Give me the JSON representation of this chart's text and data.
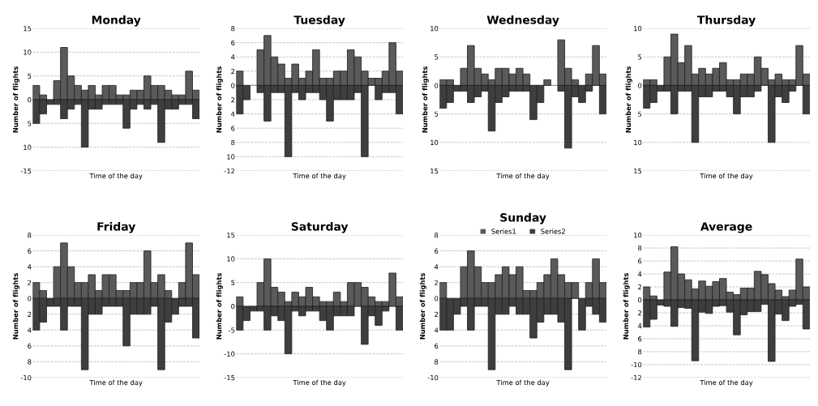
{
  "chart_data": [
    {
      "type": "bar",
      "stacked": true,
      "title": "Monday",
      "xlabel": "Time of the day",
      "ylabel": "Number of flights",
      "categories": [
        null,
        null,
        null,
        null,
        null,
        null,
        null,
        null,
        null,
        null,
        null,
        null,
        null,
        null,
        null,
        null,
        null,
        null,
        null,
        null,
        null,
        null,
        null,
        null
      ],
      "grid": "y",
      "ylim": [
        -15,
        15
      ],
      "yticks": [
        {
          "value": -15,
          "label": "-15"
        },
        {
          "value": -10,
          "label": "10"
        },
        {
          "value": -5,
          "label": "5"
        },
        0,
        5,
        10,
        15
      ],
      "series": [
        {
          "color": "#5a5a5a",
          "values": [
            3,
            1,
            0,
            4,
            11,
            5,
            3,
            2,
            3,
            1,
            3,
            3,
            1,
            1,
            2,
            2,
            5,
            3,
            3,
            2,
            1,
            1,
            6,
            2
          ]
        },
        {
          "color": "#3e3e3e",
          "values": [
            -5,
            -3,
            -1,
            -1,
            -4,
            -2,
            -1,
            -10,
            -2,
            -2,
            -1,
            -1,
            -1,
            -6,
            -2,
            -1,
            -2,
            -1,
            -9,
            -2,
            -2,
            -1,
            -1,
            -4
          ]
        }
      ]
    },
    {
      "type": "bar",
      "stacked": true,
      "title": "Tuesday",
      "xlabel": "Time of the day",
      "ylabel": "Number of flights",
      "categories": [
        null,
        null,
        null,
        null,
        null,
        null,
        null,
        null,
        null,
        null,
        null,
        null,
        null,
        null,
        null,
        null,
        null,
        null,
        null,
        null,
        null,
        null,
        null,
        null
      ],
      "grid": "y",
      "ylim": [
        -12,
        8
      ],
      "yticks": [
        {
          "value": -12,
          "label": "-12"
        },
        {
          "value": -10,
          "label": "10"
        },
        {
          "value": -8,
          "label": "8"
        },
        {
          "value": -6,
          "label": "6"
        },
        {
          "value": -4,
          "label": "4"
        },
        {
          "value": -2,
          "label": "2"
        },
        0,
        2,
        4,
        6,
        8
      ],
      "series": [
        {
          "color": "#5a5a5a",
          "values": [
            2,
            0,
            0,
            5,
            7,
            4,
            3,
            1,
            3,
            1,
            2,
            5,
            1,
            1,
            2,
            2,
            5,
            4,
            2,
            1,
            1,
            2,
            6,
            2
          ]
        },
        {
          "color": "#3e3e3e",
          "values": [
            -4,
            -2,
            0,
            -1,
            -5,
            -1,
            -1,
            -10,
            -1,
            -2,
            -1,
            -1,
            -2,
            -5,
            -2,
            -2,
            -2,
            -1,
            -10,
            0,
            -2,
            -1,
            -1,
            -4
          ]
        }
      ]
    },
    {
      "type": "bar",
      "stacked": true,
      "title": "Wednesday",
      "xlabel": "Time of the day",
      "ylabel": "Number of flights",
      "categories": [
        null,
        null,
        null,
        null,
        null,
        null,
        null,
        null,
        null,
        null,
        null,
        null,
        null,
        null,
        null,
        null,
        null,
        null,
        null,
        null,
        null,
        null,
        null,
        null
      ],
      "grid": "y",
      "ylim": [
        -15,
        10
      ],
      "yticks": [
        {
          "value": -15,
          "label": "15"
        },
        {
          "value": -10,
          "label": "10"
        },
        {
          "value": -5,
          "label": "5"
        },
        0,
        5,
        10
      ],
      "series": [
        {
          "color": "#5a5a5a",
          "values": [
            1,
            1,
            0,
            3,
            7,
            3,
            2,
            1,
            3,
            3,
            2,
            3,
            2,
            0,
            0,
            1,
            0,
            8,
            3,
            1,
            0,
            2,
            7,
            2
          ]
        },
        {
          "color": "#3e3e3e",
          "values": [
            -4,
            -3,
            -1,
            -1,
            -3,
            -2,
            -1,
            -8,
            -3,
            -2,
            -1,
            -1,
            -1,
            -6,
            -3,
            0,
            0,
            -1,
            -11,
            -2,
            -3,
            -1,
            0,
            -5
          ]
        }
      ]
    },
    {
      "type": "bar",
      "stacked": true,
      "title": "Thursday",
      "xlabel": "Time of the day",
      "ylabel": "Number of flights",
      "categories": [
        null,
        null,
        null,
        null,
        null,
        null,
        null,
        null,
        null,
        null,
        null,
        null,
        null,
        null,
        null,
        null,
        null,
        null,
        null,
        null,
        null,
        null,
        null,
        null
      ],
      "grid": "y",
      "ylim": [
        -15,
        10
      ],
      "yticks": [
        {
          "value": -15,
          "label": "15"
        },
        {
          "value": -10,
          "label": "10"
        },
        {
          "value": -5,
          "label": "5"
        },
        0,
        5,
        10
      ],
      "series": [
        {
          "color": "#5a5a5a",
          "values": [
            1,
            1,
            0,
            5,
            9,
            4,
            7,
            2,
            3,
            2,
            3,
            4,
            1,
            1,
            2,
            2,
            5,
            3,
            1,
            2,
            1,
            1,
            7,
            2
          ]
        },
        {
          "color": "#3e3e3e",
          "values": [
            -4,
            -3,
            -1,
            -1,
            -5,
            -1,
            -1,
            -10,
            -2,
            -2,
            -1,
            -1,
            -2,
            -5,
            -2,
            -2,
            -1,
            0,
            -10,
            -2,
            -3,
            -1,
            0,
            -5
          ]
        }
      ]
    },
    {
      "type": "bar",
      "stacked": true,
      "title": "Friday",
      "xlabel": "Time of the day",
      "ylabel": "Number of flights",
      "categories": [
        null,
        null,
        null,
        null,
        null,
        null,
        null,
        null,
        null,
        null,
        null,
        null,
        null,
        null,
        null,
        null,
        null,
        null,
        null,
        null,
        null,
        null,
        null,
        null
      ],
      "grid": "y",
      "ylim": [
        -10,
        8
      ],
      "yticks": [
        {
          "value": -10,
          "label": "-10"
        },
        {
          "value": -8,
          "label": "8"
        },
        {
          "value": -6,
          "label": "6"
        },
        {
          "value": -4,
          "label": "4"
        },
        {
          "value": -2,
          "label": "2"
        },
        0,
        2,
        4,
        6,
        8
      ],
      "series": [
        {
          "color": "#5a5a5a",
          "values": [
            2,
            1,
            0,
            4,
            7,
            4,
            2,
            2,
            3,
            1,
            3,
            3,
            1,
            1,
            2,
            2,
            6,
            2,
            3,
            1,
            0,
            2,
            7,
            3
          ]
        },
        {
          "color": "#3e3e3e",
          "values": [
            -4,
            -3,
            -1,
            -1,
            -4,
            -1,
            -1,
            -9,
            -2,
            -2,
            -1,
            -1,
            -1,
            -6,
            -2,
            -2,
            -2,
            -1,
            -9,
            -3,
            -2,
            -1,
            -1,
            -5
          ]
        }
      ]
    },
    {
      "type": "bar",
      "stacked": true,
      "title": "Saturday",
      "xlabel": "Time of the day",
      "ylabel": "Number of flights",
      "categories": [
        null,
        null,
        null,
        null,
        null,
        null,
        null,
        null,
        null,
        null,
        null,
        null,
        null,
        null,
        null,
        null,
        null,
        null,
        null,
        null,
        null,
        null,
        null,
        null
      ],
      "grid": "y",
      "ylim": [
        -15,
        15
      ],
      "yticks": [
        {
          "value": -15,
          "label": "-15"
        },
        {
          "value": -10,
          "label": "-10"
        },
        {
          "value": -5,
          "label": "-5"
        },
        0,
        5,
        10,
        15
      ],
      "series": [
        {
          "color": "#5a5a5a",
          "values": [
            2,
            0,
            0,
            5,
            10,
            4,
            3,
            1,
            3,
            2,
            4,
            2,
            1,
            1,
            3,
            1,
            5,
            5,
            4,
            2,
            1,
            1,
            7,
            2
          ]
        },
        {
          "color": "#3e3e3e",
          "values": [
            -5,
            -3,
            -1,
            -1,
            -5,
            -2,
            -3,
            -10,
            -1,
            -2,
            -1,
            -1,
            -3,
            -5,
            -2,
            -2,
            -2,
            0,
            -8,
            -2,
            -4,
            -1,
            0,
            -5
          ]
        }
      ]
    },
    {
      "type": "bar",
      "stacked": true,
      "title": "Sunday",
      "xlabel": "Time of the day",
      "ylabel": "Number of flights",
      "categories": [
        null,
        null,
        null,
        null,
        null,
        null,
        null,
        null,
        null,
        null,
        null,
        null,
        null,
        null,
        null,
        null,
        null,
        null,
        null,
        null,
        null,
        null,
        null,
        null
      ],
      "grid": "y",
      "legend": "top",
      "ylim": [
        -10,
        8
      ],
      "yticks": [
        {
          "value": -10,
          "label": "-10"
        },
        {
          "value": -8,
          "label": "8"
        },
        {
          "value": -6,
          "label": "6"
        },
        {
          "value": -4,
          "label": "4"
        },
        {
          "value": -2,
          "label": "2"
        },
        0,
        2,
        4,
        6,
        8
      ],
      "series": [
        {
          "name": "Series1",
          "color": "#5a5a5a",
          "values": [
            2,
            0,
            0,
            4,
            6,
            4,
            2,
            2,
            3,
            4,
            3,
            4,
            1,
            1,
            2,
            3,
            5,
            3,
            2,
            2,
            0,
            2,
            5,
            2
          ]
        },
        {
          "name": "Series2",
          "color": "#3e3e3e",
          "values": [
            -4,
            -4,
            -2,
            -1,
            -4,
            -1,
            -1,
            -9,
            -2,
            -2,
            -1,
            -2,
            -2,
            -5,
            -3,
            -2,
            -2,
            -3,
            -9,
            0,
            -4,
            -1,
            -2,
            -3
          ]
        }
      ]
    },
    {
      "type": "bar",
      "stacked": true,
      "title": "Average",
      "xlabel": "Time of the day",
      "ylabel": "Number of flights",
      "categories": [
        null,
        null,
        null,
        null,
        null,
        null,
        null,
        null,
        null,
        null,
        null,
        null,
        null,
        null,
        null,
        null,
        null,
        null,
        null,
        null,
        null,
        null,
        null,
        null
      ],
      "grid": "y",
      "ylim": [
        -12,
        10
      ],
      "yticks": [
        {
          "value": -12,
          "label": "-12"
        },
        {
          "value": -10,
          "label": "-10"
        },
        {
          "value": -8,
          "label": "8"
        },
        {
          "value": -6,
          "label": "6"
        },
        {
          "value": -4,
          "label": "4"
        },
        {
          "value": -2,
          "label": "2"
        },
        0,
        2,
        4,
        6,
        8,
        10
      ],
      "series": [
        {
          "color": "#5a5a5a",
          "values": [
            2,
            0.6,
            0,
            4.3,
            8.2,
            4,
            3.1,
            1.7,
            2.9,
            2.1,
            2.8,
            3.3,
            1.2,
            0.8,
            1.8,
            1.8,
            4.4,
            3.9,
            2.5,
            1.5,
            0.5,
            1.5,
            6.3,
            2
          ]
        },
        {
          "color": "#3e3e3e",
          "values": [
            -4.2,
            -3,
            -0.8,
            -1,
            -4.1,
            -1.2,
            -1.3,
            -9.4,
            -1.9,
            -2.1,
            -1,
            -0.9,
            -1.9,
            -5.4,
            -2.3,
            -1.8,
            -1.8,
            -0.7,
            -9.5,
            -2.2,
            -3.2,
            -1,
            -0.7,
            -4.5
          ]
        }
      ]
    }
  ]
}
